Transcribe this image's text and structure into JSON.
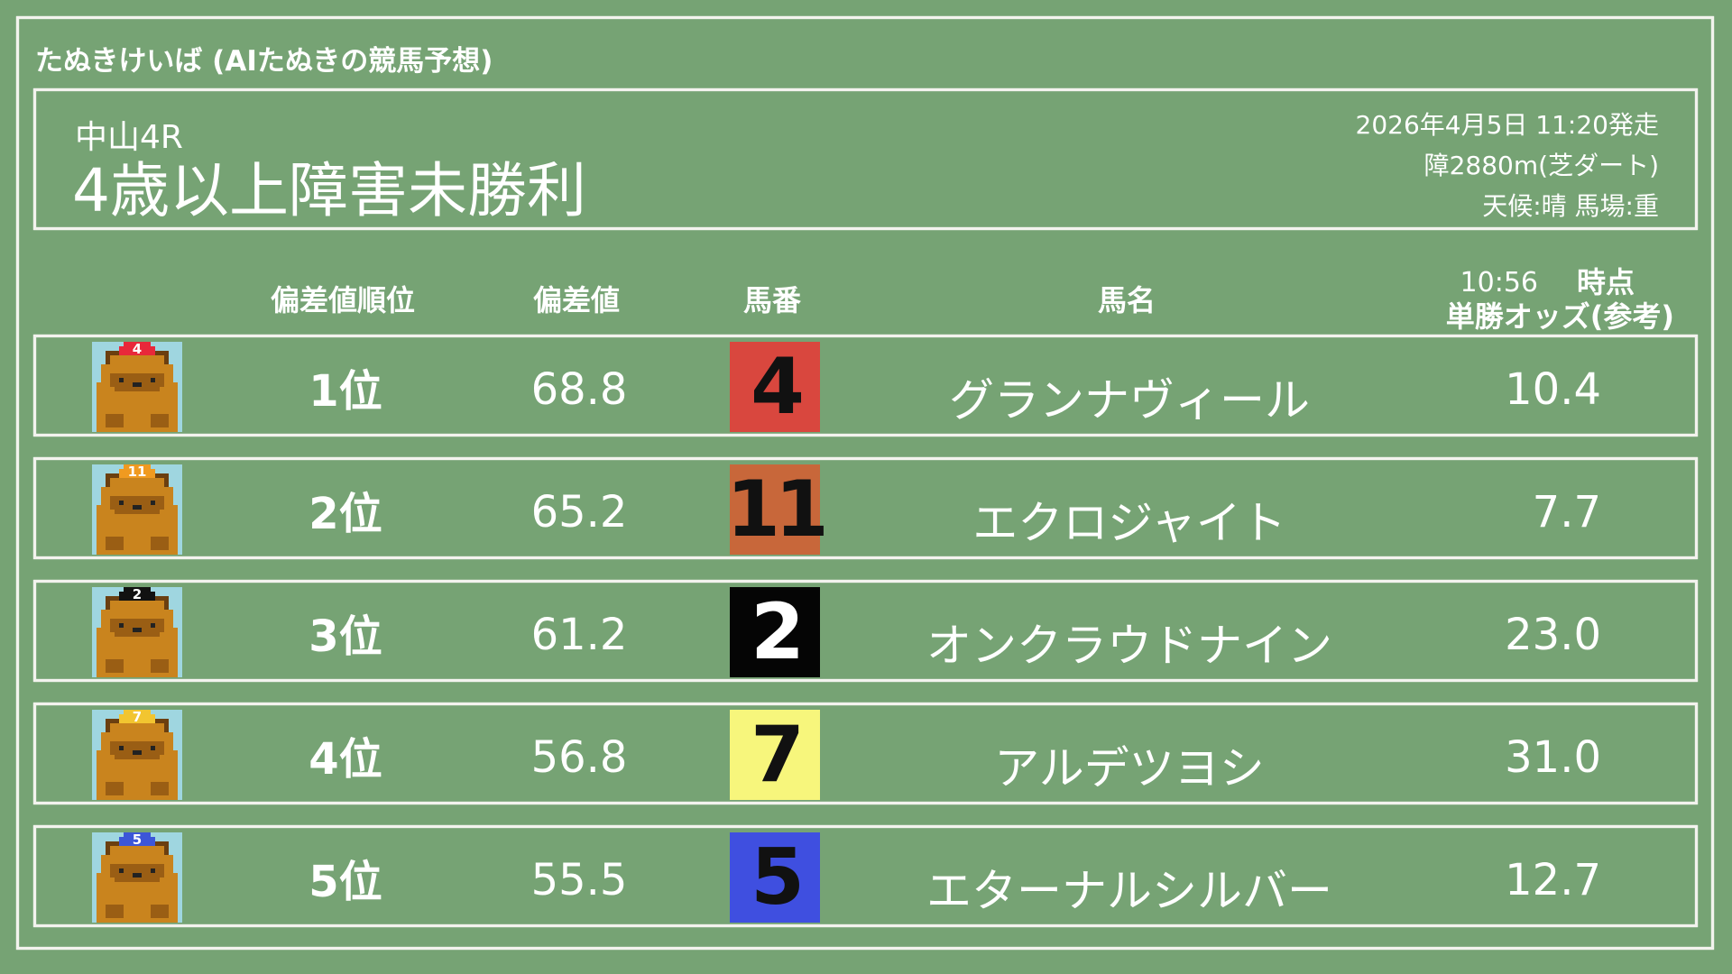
{
  "app_title": "たぬきけいば (AIたぬきの競馬予想)",
  "race": {
    "venue_round": "中山4R",
    "name": "4歳以上障害未勝利",
    "datetime": "2026年4月5日 11:20発走",
    "course": "障2880m(芝ダート)",
    "conditions": "天候:晴 馬場:重"
  },
  "columns": {
    "rank": "偏差値順位",
    "score": "偏差値",
    "number": "馬番",
    "name": "馬名",
    "odds_time": "10:56",
    "odds_time_suffix": "時点",
    "odds": "単勝オッズ(参考)"
  },
  "rows": [
    {
      "rank": "1位",
      "score": "68.8",
      "number": "4",
      "name": "グランナヴィール",
      "odds": "10.4",
      "box_color": "#d9473e",
      "num_color": "#111111",
      "cap_color": "#e8283a"
    },
    {
      "rank": "2位",
      "score": "65.2",
      "number": "11",
      "name": "エクロジャイト",
      "odds": "7.7",
      "box_color": "#c8673a",
      "num_color": "#111111",
      "cap_color": "#f09a20"
    },
    {
      "rank": "3位",
      "score": "61.2",
      "number": "2",
      "name": "オンクラウドナイン",
      "odds": "23.0",
      "box_color": "#050505",
      "num_color": "#ffffff",
      "cap_color": "#111111"
    },
    {
      "rank": "4位",
      "score": "56.8",
      "number": "7",
      "name": "アルデツヨシ",
      "odds": "31.0",
      "box_color": "#f7f67c",
      "num_color": "#111111",
      "cap_color": "#f2c530"
    },
    {
      "rank": "5位",
      "score": "55.5",
      "number": "5",
      "name": "エターナルシルバー",
      "odds": "12.7",
      "box_color": "#3f4fe0",
      "num_color": "#111111",
      "cap_color": "#3c56d8"
    }
  ]
}
